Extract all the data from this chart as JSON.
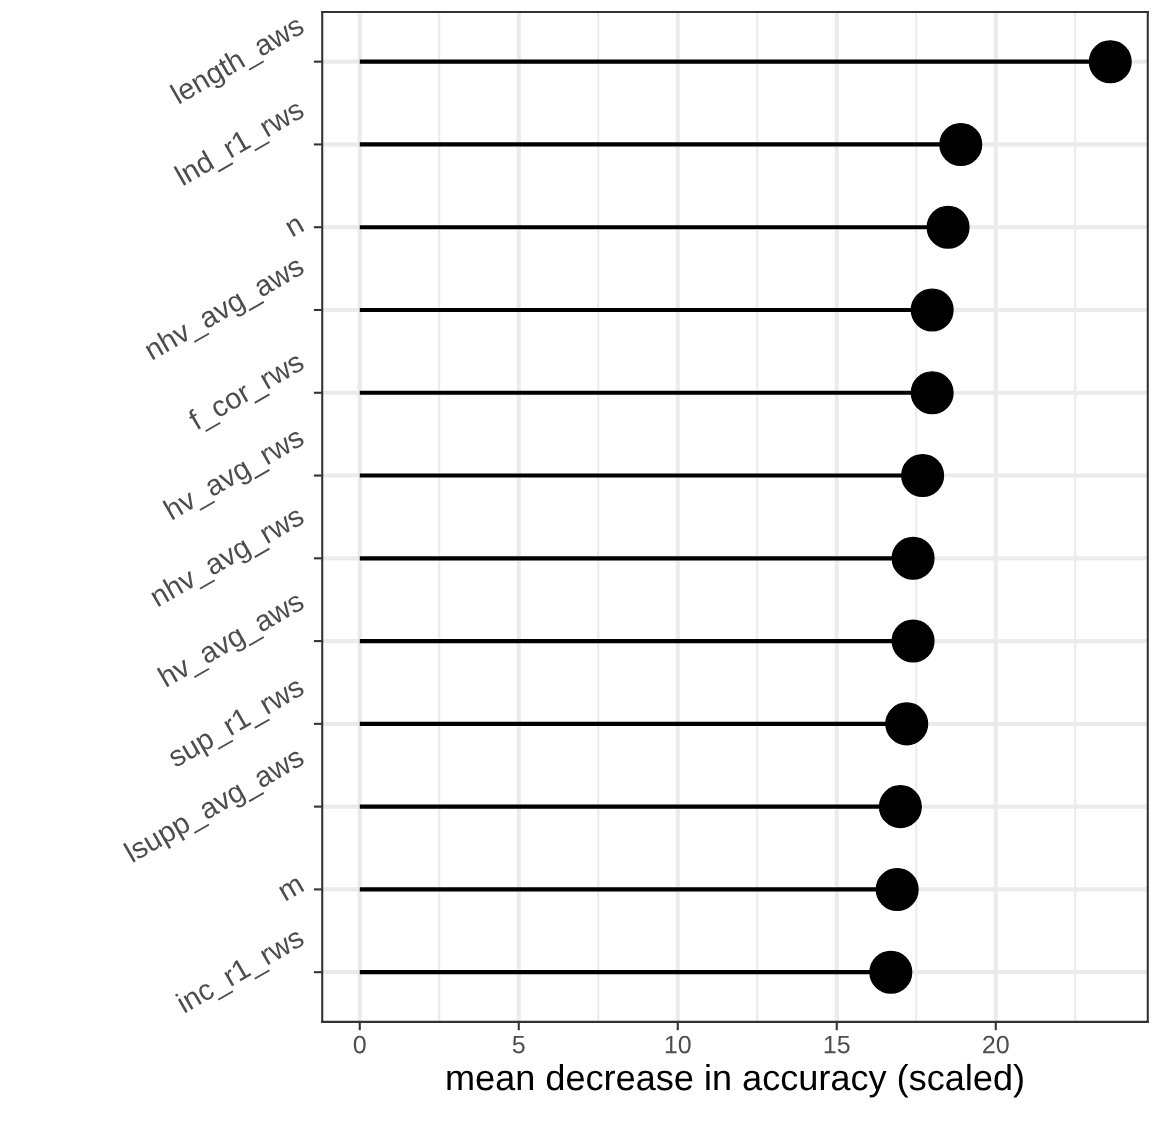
{
  "chart_data": {
    "type": "lollipop",
    "xlabel": "mean decrease in accuracy (scaled)",
    "orientation": "horizontal",
    "categories": [
      "length_aws",
      "lnd_r1_rws",
      "n",
      "nhv_avg_aws",
      "f_cor_rws",
      "hv_avg_rws",
      "nhv_avg_rws",
      "hv_avg_aws",
      "sup_r1_rws",
      "lsupp_avg_aws",
      "m",
      "inc_r1_rws"
    ],
    "values": [
      23.6,
      18.9,
      18.5,
      18.0,
      18.0,
      17.7,
      17.4,
      17.4,
      17.2,
      17.0,
      16.9,
      16.7
    ],
    "color": "#000000",
    "marker": "circle",
    "xlim": [
      -1.18,
      24.78
    ],
    "xticks": [
      0,
      5,
      10,
      15,
      20
    ],
    "grid": true
  }
}
